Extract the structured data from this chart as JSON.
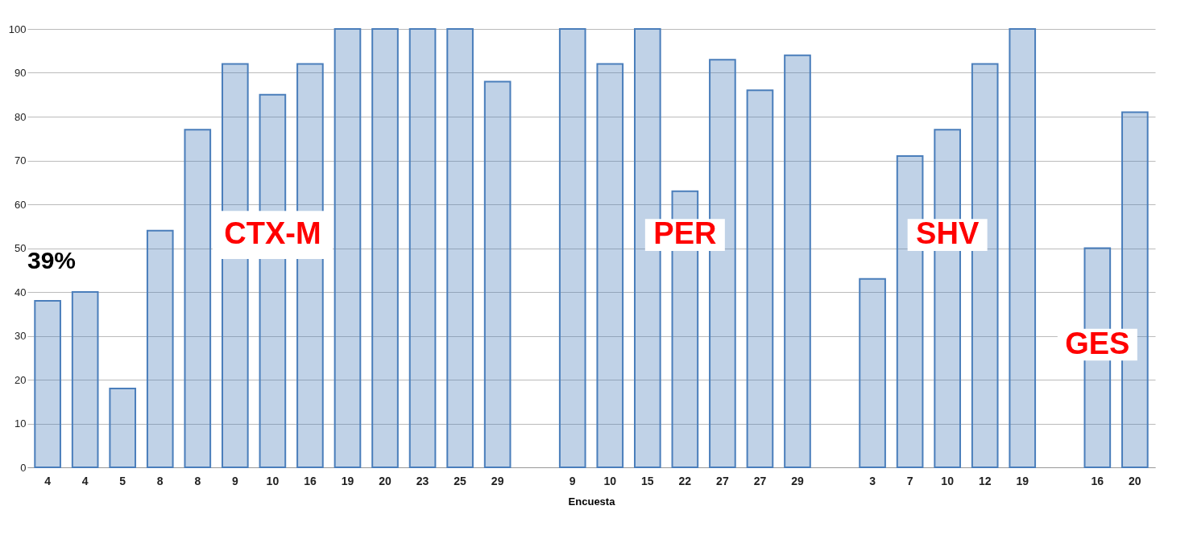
{
  "chart_data": {
    "type": "bar",
    "xlabel": "Encuesta",
    "categories": [
      "4",
      "4",
      "5",
      "8",
      "8",
      "9",
      "10",
      "16",
      "19",
      "20",
      "23",
      "25",
      "29",
      null,
      "9",
      "10",
      "15",
      "22",
      "27",
      "27",
      "29",
      null,
      "3",
      "7",
      "10",
      "12",
      "19",
      null,
      "16",
      "20"
    ],
    "series": [
      {
        "name": "CTX-M",
        "color": "#4a7ebb",
        "values": [
          38,
          40,
          18,
          54,
          77,
          92,
          85,
          92,
          100,
          100,
          100,
          100,
          88,
          null,
          null,
          null,
          null,
          null,
          null,
          null,
          null,
          null,
          null,
          null,
          null,
          null,
          null,
          null,
          null,
          null
        ]
      },
      {
        "name": "PER",
        "color": "#4a7ebb",
        "values": [
          null,
          null,
          null,
          null,
          null,
          null,
          null,
          null,
          null,
          null,
          null,
          null,
          null,
          null,
          100,
          92,
          100,
          63,
          93,
          86,
          94,
          null,
          null,
          null,
          null,
          null,
          null,
          null,
          null,
          null
        ]
      },
      {
        "name": "SHV",
        "color": "#4a7ebb",
        "values": [
          null,
          null,
          null,
          null,
          null,
          null,
          null,
          null,
          null,
          null,
          null,
          null,
          null,
          null,
          null,
          null,
          null,
          null,
          null,
          null,
          null,
          null,
          43,
          71,
          77,
          92,
          100,
          null,
          null,
          null
        ]
      },
      {
        "name": "GES",
        "color": "#4a7ebb",
        "values": [
          null,
          null,
          null,
          null,
          null,
          null,
          null,
          null,
          null,
          null,
          null,
          null,
          null,
          null,
          null,
          null,
          null,
          null,
          null,
          null,
          null,
          null,
          null,
          null,
          null,
          null,
          null,
          null,
          50,
          81
        ]
      }
    ],
    "annotations": [
      "39%"
    ],
    "ylim": [
      0,
      100
    ],
    "yticks": [
      0,
      10,
      20,
      30,
      40,
      50,
      60,
      70,
      80,
      90,
      100
    ],
    "grid": "y"
  }
}
